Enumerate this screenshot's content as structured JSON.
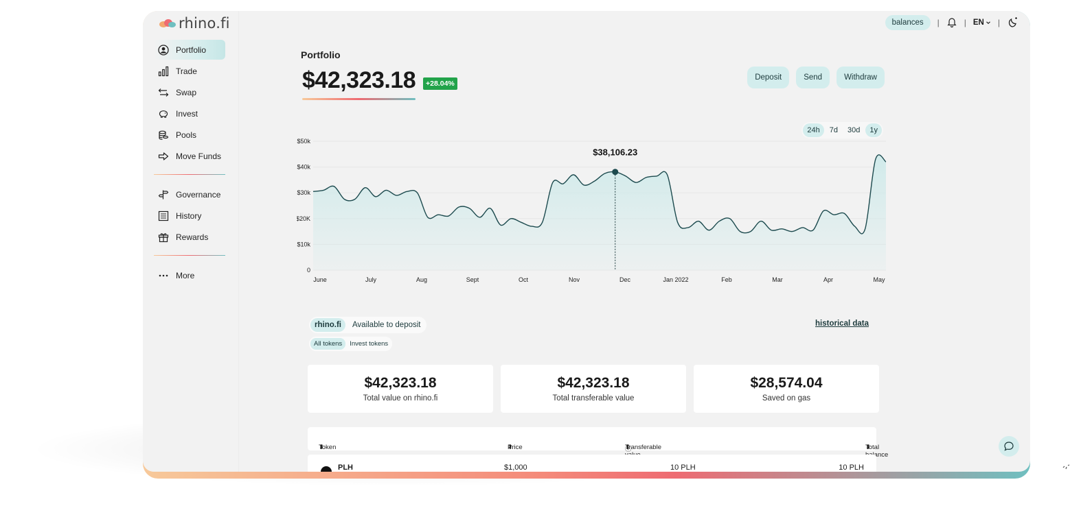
{
  "brand": {
    "name": "rhino.fi"
  },
  "sidebar": {
    "items": [
      {
        "label": "Portfolio",
        "icon": "user-circle-icon",
        "active": true
      },
      {
        "label": "Trade",
        "icon": "bar-chart-icon"
      },
      {
        "label": "Swap",
        "icon": "swap-arrows-icon"
      },
      {
        "label": "Invest",
        "icon": "piggy-bank-icon"
      },
      {
        "label": "Pools",
        "icon": "coins-stack-icon"
      },
      {
        "label": "Move Funds",
        "icon": "arrow-right-icon"
      }
    ],
    "items2": [
      {
        "label": "Governance",
        "icon": "signpost-icon"
      },
      {
        "label": "History",
        "icon": "ledger-icon"
      },
      {
        "label": "Rewards",
        "icon": "gift-icon"
      }
    ],
    "more": {
      "label": "More",
      "icon": "ellipsis-icon"
    }
  },
  "topbar": {
    "balances": "balances",
    "divider": "|",
    "language": "EN",
    "icons": [
      "bell-icon",
      "chevron-down-icon",
      "moon-icon"
    ]
  },
  "portfolio": {
    "title": "Portfolio",
    "total": "$42,323.18",
    "change": "+28.04%",
    "actions": {
      "deposit": "Deposit",
      "send": "Send",
      "withdraw": "Withdraw"
    },
    "ranges": [
      "24h",
      "7d",
      "30d",
      "1y"
    ],
    "active_ranges": [
      "24h",
      "1y"
    ]
  },
  "chart_data": {
    "type": "area",
    "x": [
      "June",
      "July",
      "Aug",
      "Sept",
      "Oct",
      "Nov",
      "Dec",
      "Jan 2022",
      "Feb",
      "Mar",
      "Apr",
      "May"
    ],
    "ytick_labels": [
      "0",
      "$10k",
      "$20K",
      "$30k",
      "$40k",
      "$50k"
    ],
    "ylim": [
      0,
      50000
    ],
    "series_values": [
      30500,
      31000,
      32500,
      27500,
      27500,
      32000,
      28500,
      31000,
      29000,
      30500,
      30000,
      20500,
      21500,
      21000,
      24500,
      24000,
      20500,
      24000,
      17500,
      20000,
      18500,
      17000,
      18500,
      34000,
      33500,
      37000,
      33000,
      34500,
      37500,
      38106,
      36500,
      34000,
      36000,
      36500,
      37000,
      18500,
      16500,
      19000,
      15500,
      19000,
      20000,
      15000,
      15000,
      19000,
      15500,
      16000,
      15000,
      16500,
      15500,
      23000,
      21500,
      22000,
      17000,
      16000,
      43000,
      42000
    ],
    "highlight": {
      "label": "$38,106.23",
      "index": 29
    },
    "line_color": "#1c4a4e",
    "fill_color": "#cfeaea"
  },
  "balances": {
    "tabs": {
      "active": "rhino.fi",
      "other": "Available to deposit"
    },
    "subtabs": {
      "active": "All tokens",
      "other": "Invest tokens"
    },
    "historical_link": "historical data",
    "cards": [
      {
        "value": "$42,323.18",
        "label": "Total value on rhino.fi"
      },
      {
        "value": "$42,323.18",
        "label": "Total transferable value"
      },
      {
        "value": "$28,574.04",
        "label": "Saved on gas"
      }
    ],
    "table": {
      "headers": {
        "token": "Token",
        "price": "Price",
        "transferable": "Transferable value",
        "total": "Total balance"
      },
      "rows": [
        {
          "token": "PLH",
          "price": "$1,000",
          "transferable": "10 PLH",
          "total": "10 PLH"
        }
      ]
    }
  },
  "colors": {
    "accent": "#d3eded",
    "positive": "#22a34a",
    "dark_teal": "#1c3a3c"
  }
}
